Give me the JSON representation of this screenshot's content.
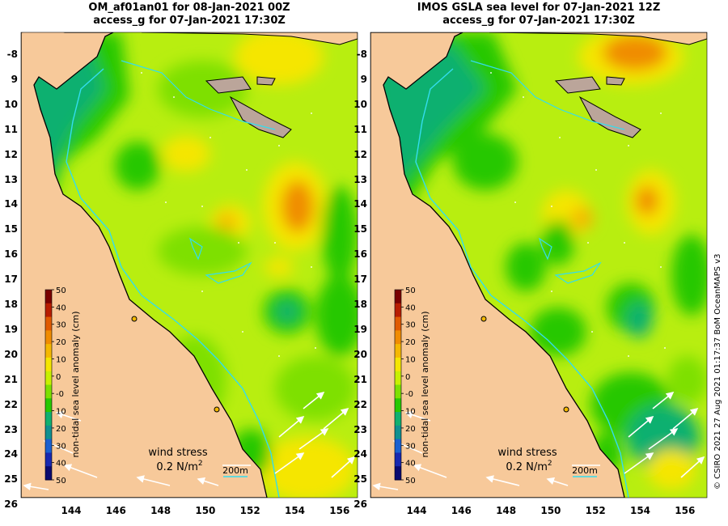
{
  "panels": [
    {
      "title_line1": "OM_af01an01 for 08-Jan-2021 00Z",
      "title_line2": "access_g for 07-Jan-2021 17:30Z"
    },
    {
      "title_line1": "IMOS GSLA sea level  for 07-Jan-2021 12Z",
      "title_line2": "access_g for 07-Jan-2021 17:30Z"
    }
  ],
  "axes": {
    "lat_labels": [
      "-8",
      "9",
      "10",
      "11",
      "12",
      "13",
      "14",
      "15",
      "16",
      "17",
      "18",
      "19",
      "20",
      "21",
      "22",
      "23",
      "24",
      "25",
      "26"
    ],
    "lon_labels": [
      "144",
      "146",
      "148",
      "150",
      "152",
      "154",
      "156"
    ]
  },
  "colorbar": {
    "label": "non-tidal sea level anomaly (cm)",
    "ticks": [
      "50",
      "40",
      "30",
      "20",
      "10",
      "0",
      "-0",
      "10",
      "20",
      "30",
      "40",
      "50"
    ],
    "colors": [
      "#7a0000",
      "#b81d00",
      "#e05a00",
      "#f08c00",
      "#f5b800",
      "#f5e600",
      "#c8f000",
      "#7ee000",
      "#28c800",
      "#10b070",
      "#109090",
      "#1a60d0",
      "#1828b0",
      "#0a0a70"
    ]
  },
  "annotations": {
    "wind_label": "wind stress",
    "wind_value": "0.2 N/m",
    "wind_unit_sup": "2",
    "depth_label": "200m"
  },
  "sidenote": "© CSIRO 2021   27 Aug 2021 01:17:37 BoM OceanMAPS v3",
  "map_colors": {
    "land": "#f7c99a",
    "sea_base": "#b8ee10",
    "coastline": "#000000",
    "isobath": "#33ddee",
    "arrow": "#ffffff"
  }
}
